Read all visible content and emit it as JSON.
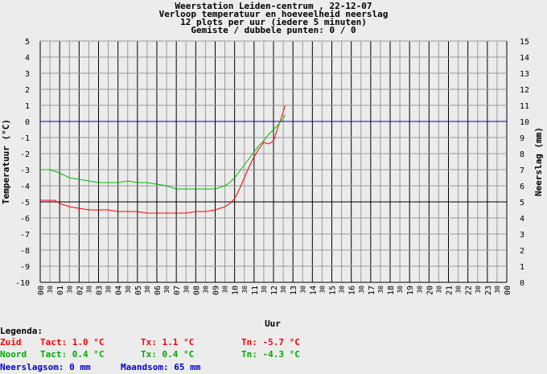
{
  "header": {
    "line1": "Weerstation Leiden-centrum , 22-12-07",
    "line2": "Verloop temperatuur en hoeveelheid neerslag",
    "line3": "12 plots per uur (iedere 5 minuten)",
    "line4": "Gemiste / dubbele punten: 0 / 0"
  },
  "chart_data": {
    "type": "line",
    "title": "Verloop temperatuur en hoeveelheid neerslag",
    "xlabel": "Uur",
    "ylabel": "Temperatuur (°C)",
    "y2label": "Neerslag (mm)",
    "xlim": [
      0,
      24
    ],
    "ylim": [
      -10,
      5
    ],
    "y2lim": [
      0,
      15
    ],
    "x_hour_ticks": [
      "00",
      "01",
      "02",
      "03",
      "04",
      "05",
      "06",
      "07",
      "08",
      "09",
      "10",
      "11",
      "12",
      "13",
      "14",
      "15",
      "16",
      "17",
      "18",
      "19",
      "20",
      "21",
      "22",
      "23",
      "00"
    ],
    "x_half_tick_label": "30",
    "y_ticks": [
      5,
      4,
      3,
      2,
      1,
      0,
      -1,
      -2,
      -3,
      -4,
      -5,
      -6,
      -7,
      -8,
      -9,
      -10
    ],
    "y2_ticks": [
      15,
      14,
      13,
      12,
      11,
      10,
      9,
      8,
      7,
      6,
      5,
      4,
      3,
      2,
      1,
      0
    ],
    "grid": true,
    "series": [
      {
        "name": "Zuid",
        "color": "#ff0000",
        "x": [
          0,
          0.25,
          0.5,
          0.75,
          1,
          1.25,
          1.5,
          2,
          2.5,
          3,
          3.5,
          4,
          4.5,
          5,
          5.5,
          6,
          6.5,
          7,
          7.5,
          8,
          8.5,
          9,
          9.25,
          9.5,
          9.75,
          10,
          10.25,
          10.5,
          10.75,
          11,
          11.25,
          11.5,
          11.75,
          12,
          12.25,
          12.5,
          12.6
        ],
        "y": [
          -4.9,
          -4.9,
          -4.9,
          -4.9,
          -5.1,
          -5.2,
          -5.3,
          -5.4,
          -5.5,
          -5.5,
          -5.5,
          -5.6,
          -5.6,
          -5.6,
          -5.7,
          -5.7,
          -5.7,
          -5.7,
          -5.7,
          -5.6,
          -5.6,
          -5.5,
          -5.4,
          -5.3,
          -5.1,
          -4.8,
          -4.2,
          -3.5,
          -2.8,
          -2.2,
          -1.7,
          -1.3,
          -1.4,
          -1.2,
          -0.3,
          0.6,
          1.0
        ]
      },
      {
        "name": "Noord",
        "color": "#00bb00",
        "x": [
          0,
          0.5,
          1,
          1.5,
          2,
          2.5,
          3,
          3.5,
          4,
          4.5,
          5,
          5.5,
          6,
          6.5,
          7,
          7.5,
          8,
          8.5,
          9,
          9.5,
          9.75,
          10,
          10.25,
          10.5,
          10.75,
          11,
          11.25,
          11.5,
          11.75,
          12,
          12.25,
          12.5,
          12.6
        ],
        "y": [
          -3.0,
          -3.0,
          -3.2,
          -3.5,
          -3.6,
          -3.7,
          -3.8,
          -3.8,
          -3.8,
          -3.7,
          -3.8,
          -3.8,
          -3.9,
          -4.0,
          -4.2,
          -4.2,
          -4.2,
          -4.2,
          -4.2,
          -4.0,
          -3.8,
          -3.5,
          -3.1,
          -2.7,
          -2.3,
          -1.9,
          -1.5,
          -1.2,
          -0.8,
          -0.5,
          -0.2,
          0.2,
          0.4
        ]
      }
    ],
    "reference_lines": [
      {
        "axis": "y",
        "value": 0,
        "color": "#0000cc"
      },
      {
        "axis": "y",
        "value": -5,
        "color": "#000000"
      },
      {
        "axis": "y",
        "value": -10,
        "color": "#000000"
      }
    ]
  },
  "legend": {
    "title": "Legenda:",
    "rows": [
      {
        "name": "Zuid",
        "tact": "Tact: 1.0 °C",
        "tx": "Tx: 1.1 °C",
        "tn": "Tn: -5.7 °C",
        "color": "#ff0000"
      },
      {
        "name": "Noord",
        "tact": "Tact: 0.4 °C",
        "tx": "Tx: 0.4 °C",
        "tn": "Tn: -4.3 °C",
        "color": "#00aa00"
      }
    ],
    "rain_today": "Neerslagsom: 0 mm",
    "rain_month": "Maandsom: 65 mm",
    "rain_color": "#0000cc"
  }
}
